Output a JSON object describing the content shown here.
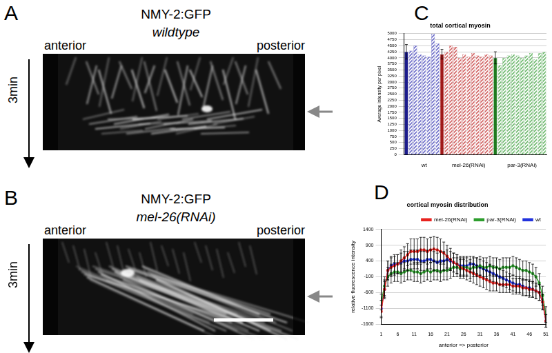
{
  "panels": [
    {
      "letter": "A",
      "title": "NMY-2:GFP",
      "genotype": "wildtype",
      "left_label": "anterior",
      "right_label": "posterior",
      "time_label": "3min",
      "scale_bar": false
    },
    {
      "letter": "B",
      "title": "NMY-2:GFP",
      "genotype": "mel-26(RNAi)",
      "left_label": "anterior",
      "right_label": "posterior",
      "time_label": "3min",
      "scale_bar": true
    }
  ],
  "chart_data": [
    {
      "panel": "C",
      "type": "bar",
      "title": "total cortical myosin",
      "y_label": "Average intensity per pixel",
      "categories": [
        null,
        null,
        null,
        null,
        "wt",
        null,
        null,
        null,
        null,
        null,
        null,
        null,
        null,
        null,
        "mel-26(RNAi)",
        null,
        null,
        null,
        null,
        null,
        null,
        null,
        null,
        null,
        null,
        null,
        "par-3(RNAi)",
        null,
        null,
        null,
        null,
        null
      ],
      "values": [
        4250,
        4300,
        4500,
        4150,
        4100,
        4050,
        5000,
        4600,
        4150,
        4250,
        4500,
        4450,
        4000,
        4150,
        4050,
        4200,
        4100,
        4050,
        4150,
        4100,
        4000,
        3700,
        4000,
        4100,
        4150,
        4100,
        4000,
        4100,
        4200,
        3950,
        4200,
        4250
      ],
      "errors": [
        300,
        null,
        null,
        null,
        null,
        null,
        null,
        null,
        200,
        null,
        null,
        null,
        null,
        null,
        null,
        null,
        null,
        null,
        null,
        null,
        250,
        null,
        null,
        null,
        null,
        null,
        null,
        null,
        null,
        null,
        null,
        null
      ],
      "colors": [
        "#1c1c8c",
        "#6b6bc8",
        "#6b6bc8",
        "#6b6bc8",
        "#6b6bc8",
        "#6b6bc8",
        "#6b6bc8",
        "#6b6bc8",
        "#a01818",
        "#d06060",
        "#d06060",
        "#d06060",
        "#d06060",
        "#d06060",
        "#d06060",
        "#d06060",
        "#d06060",
        "#d06060",
        "#d06060",
        "#d06060",
        "#1e7a1e",
        "#6cb86c",
        "#6cb86c",
        "#6cb86c",
        "#6cb86c",
        "#6cb86c",
        "#6cb86c",
        "#6cb86c",
        "#6cb86c",
        "#6cb86c",
        "#6cb86c",
        "#6cb86c"
      ],
      "ylim": [
        0,
        5000
      ],
      "yticks": [
        0,
        250,
        500,
        750,
        1000,
        1250,
        1500,
        1750,
        2000,
        2250,
        2500,
        2750,
        3000,
        3250,
        3500,
        3750,
        4000,
        4250,
        4500,
        4750,
        5000
      ],
      "grid": true
    },
    {
      "panel": "D",
      "type": "line",
      "title": "cortical myosin distribution",
      "x_label": "anterior => posterior",
      "y_label": "relative fluorescence intensity",
      "x": [
        1,
        2,
        3,
        4,
        5,
        6,
        7,
        8,
        9,
        10,
        11,
        12,
        13,
        14,
        15,
        16,
        17,
        18,
        19,
        20,
        21,
        22,
        23,
        24,
        25,
        26,
        27,
        28,
        29,
        30,
        31,
        32,
        33,
        34,
        35,
        36,
        37,
        38,
        39,
        40,
        41,
        42,
        43,
        44,
        45,
        46,
        47,
        48,
        49,
        50,
        51
      ],
      "series": [
        {
          "name": "mel-26(RNAi)",
          "color": "#e8231f",
          "values": [
            -1200,
            -500,
            100,
            200,
            250,
            300,
            400,
            500,
            600,
            700,
            700,
            700,
            750,
            750,
            700,
            750,
            780,
            750,
            700,
            650,
            550,
            450,
            350,
            300,
            200,
            150,
            100,
            50,
            0,
            -50,
            -100,
            -150,
            -200,
            -250,
            -300,
            -300,
            -350,
            -350,
            -350,
            -350,
            -400,
            -400,
            -400,
            -450,
            -450,
            -500,
            -500,
            -550,
            -600,
            -900,
            -1500
          ],
          "errors": [
            200,
            250,
            300,
            300,
            300,
            300,
            350,
            350,
            350,
            400,
            400,
            400,
            400,
            400,
            400,
            400,
            400,
            400,
            400,
            350,
            350,
            350,
            300,
            300,
            300,
            300,
            300,
            300,
            300,
            300,
            300,
            300,
            300,
            300,
            250,
            250,
            250,
            250,
            250,
            250,
            250,
            250,
            250,
            250,
            250,
            250,
            250,
            250,
            250,
            250,
            200
          ]
        },
        {
          "name": "par-3(RNAi)",
          "color": "#2e9e2e",
          "values": [
            -900,
            -400,
            -100,
            0,
            50,
            50,
            0,
            50,
            100,
            100,
            50,
            50,
            0,
            50,
            100,
            50,
            100,
            100,
            50,
            100,
            100,
            150,
            200,
            200,
            150,
            200,
            200,
            150,
            200,
            200,
            250,
            200,
            200,
            250,
            200,
            200,
            150,
            200,
            200,
            200,
            250,
            200,
            150,
            100,
            100,
            50,
            0,
            -100,
            -300,
            -700,
            -1300
          ],
          "errors": [
            250,
            300,
            300,
            300,
            300,
            300,
            300,
            300,
            300,
            300,
            300,
            300,
            300,
            300,
            300,
            300,
            300,
            300,
            300,
            300,
            300,
            300,
            300,
            300,
            300,
            300,
            300,
            300,
            300,
            300,
            300,
            300,
            300,
            300,
            300,
            300,
            300,
            300,
            300,
            300,
            300,
            300,
            300,
            300,
            300,
            300,
            300,
            300,
            300,
            300,
            250
          ]
        },
        {
          "name": "wt",
          "color": "#2233dd",
          "values": [
            -1100,
            -500,
            100,
            250,
            300,
            300,
            350,
            400,
            400,
            450,
            450,
            450,
            400,
            400,
            450,
            450,
            400,
            350,
            400,
            400,
            450,
            400,
            350,
            300,
            250,
            250,
            250,
            300,
            300,
            250,
            200,
            150,
            100,
            50,
            0,
            -50,
            -100,
            -150,
            -200,
            -250,
            -300,
            -350,
            -350,
            -400,
            -450,
            -450,
            -500,
            -550,
            -600,
            -900,
            -1500
          ],
          "errors": [
            250,
            300,
            300,
            300,
            300,
            300,
            300,
            300,
            300,
            300,
            300,
            300,
            300,
            300,
            300,
            300,
            300,
            300,
            300,
            300,
            300,
            300,
            300,
            300,
            300,
            300,
            300,
            250,
            250,
            250,
            250,
            250,
            250,
            250,
            250,
            250,
            250,
            250,
            250,
            250,
            250,
            250,
            250,
            250,
            250,
            250,
            250,
            250,
            250,
            250,
            200
          ]
        }
      ],
      "xlim": [
        1,
        51
      ],
      "xticks": [
        1,
        6,
        11,
        16,
        21,
        26,
        31,
        36,
        41,
        46,
        51
      ],
      "ylim": [
        -1600,
        1400
      ],
      "yticks": [
        -1600,
        -1100,
        -600,
        -100,
        400,
        900,
        1400
      ],
      "grid": true,
      "legend": "top-right",
      "marker": "circle",
      "line_style": "solid"
    }
  ]
}
